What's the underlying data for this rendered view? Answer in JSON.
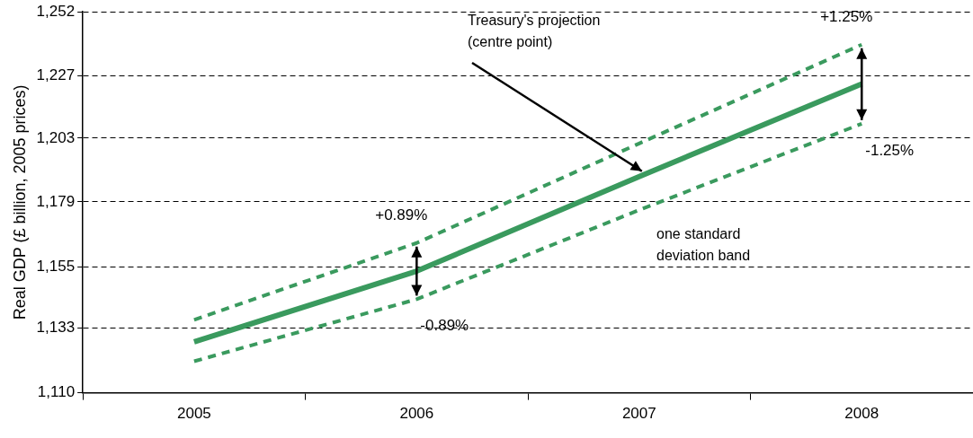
{
  "chart_data": {
    "type": "line",
    "ylabel": "Real GDP (£ billion, 2005 prices)",
    "categories": [
      "2005",
      "2006",
      "2007",
      "2008"
    ],
    "series": [
      {
        "color": "#3a9a5e",
        "values": [
          1128,
          1153.5,
          1188.5,
          1223.8
        ]
      },
      {
        "color": "#3a9a5e",
        "line_style": "dashed",
        "values": [
          1135.9,
          1163.8,
          1201,
          1239.1
        ]
      },
      {
        "color": "#3a9a5e",
        "line_style": "dashed",
        "values": [
          1121.1,
          1143.3,
          1176,
          1208.5
        ]
      }
    ],
    "log": true,
    "ylim": [
      1110,
      1252
    ],
    "yticks": [
      {
        "value": 1110,
        "label": "1,110"
      },
      {
        "value": 1133,
        "label": "1,133"
      },
      {
        "value": 1155,
        "label": "1,155"
      },
      {
        "value": 1179,
        "label": "1,179"
      },
      {
        "value": 1203,
        "label": "1,203"
      },
      {
        "value": 1227,
        "label": "1,227"
      },
      {
        "value": 1252,
        "label": "1,252"
      }
    ],
    "grid": "y",
    "legend": false,
    "marker": "none",
    "annotations": [
      {
        "text": "+0.89%",
        "x": "2006",
        "y": 1163.8
      },
      {
        "text": "-0.89%",
        "x": "2006",
        "y": 1143.3
      },
      {
        "text": "+1.25%",
        "x": "2008",
        "y": 1239.1
      },
      {
        "text": "-1.25%",
        "x": "2008",
        "y": 1208.5
      },
      {
        "text": "Treasury's projection (centre point)",
        "x": "2007",
        "y": 1188.5
      },
      "one standard deviation band"
    ]
  }
}
